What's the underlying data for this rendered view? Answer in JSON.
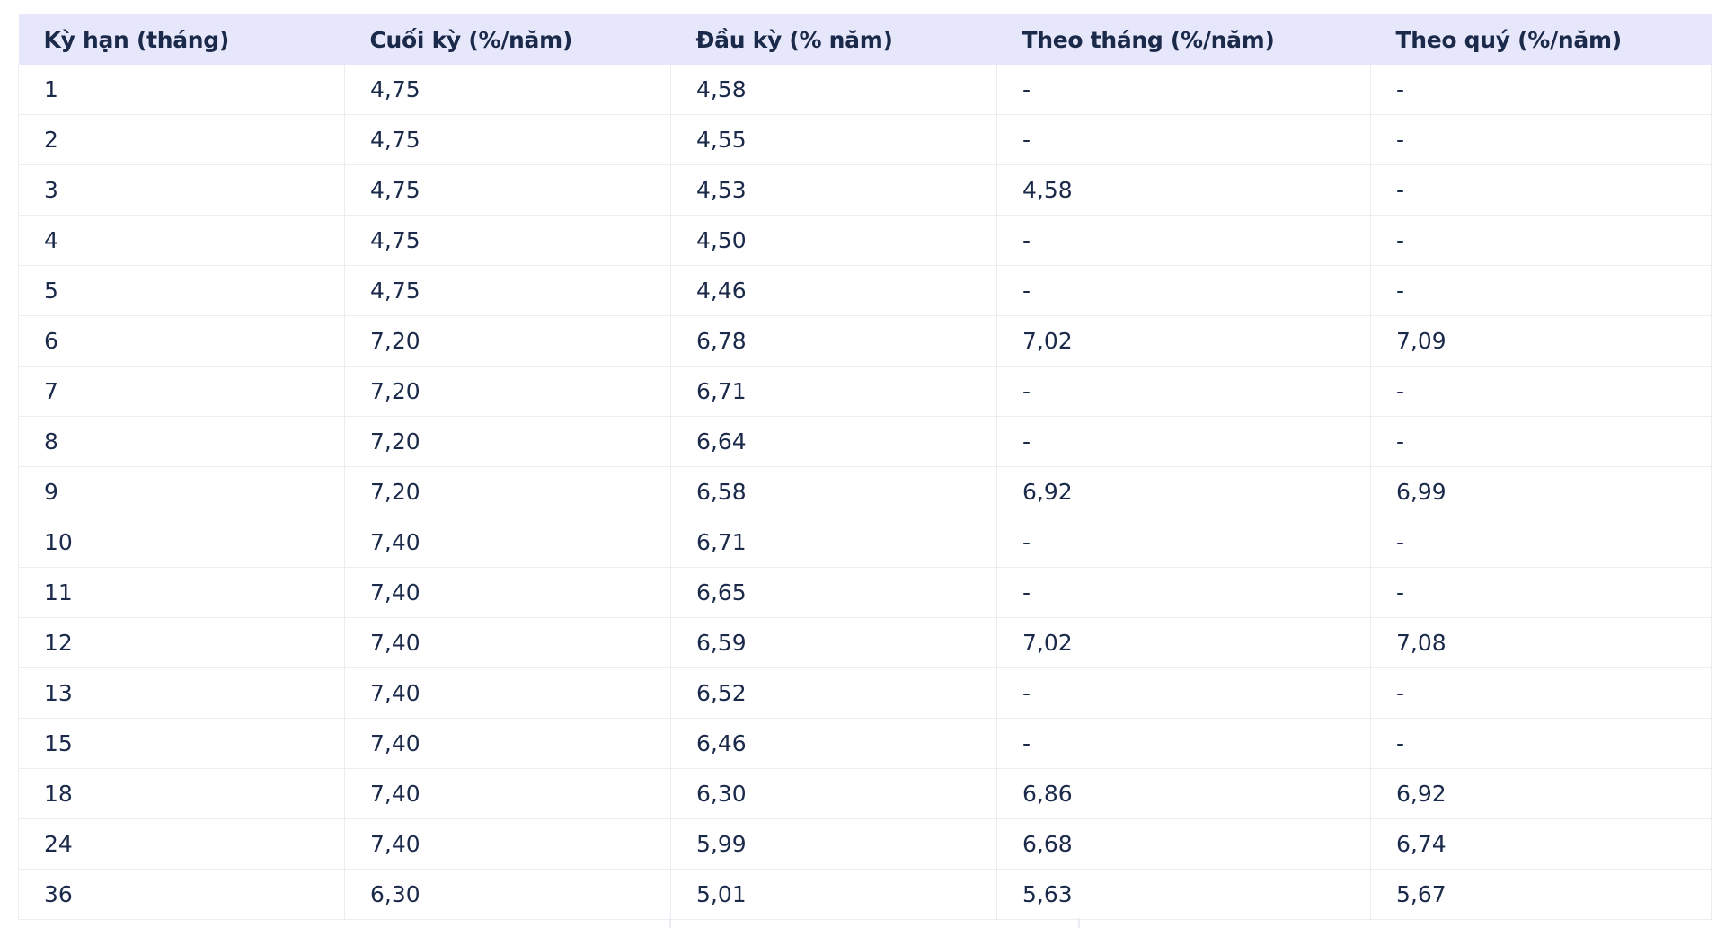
{
  "table": {
    "headers": [
      "Kỳ hạn (tháng)",
      "Cuối kỳ (%/năm)",
      "Đầu kỳ (% năm)",
      "Theo tháng (%/năm)",
      "Theo quý (%/năm)"
    ],
    "rows": [
      [
        "1",
        "4,75",
        "4,58",
        "-",
        "-"
      ],
      [
        "2",
        "4,75",
        "4,55",
        "-",
        "-"
      ],
      [
        "3",
        "4,75",
        "4,53",
        "4,58",
        "-"
      ],
      [
        "4",
        "4,75",
        "4,50",
        "-",
        "-"
      ],
      [
        "5",
        "4,75",
        "4,46",
        "-",
        "-"
      ],
      [
        "6",
        "7,20",
        "6,78",
        "7,02",
        "7,09"
      ],
      [
        "7",
        "7,20",
        "6,71",
        "-",
        "-"
      ],
      [
        "8",
        "7,20",
        "6,64",
        "-",
        "-"
      ],
      [
        "9",
        "7,20",
        "6,58",
        "6,92",
        "6,99"
      ],
      [
        "10",
        "7,40",
        "6,71",
        "-",
        "-"
      ],
      [
        "11",
        "7,40",
        "6,65",
        "-",
        "-"
      ],
      [
        "12",
        "7,40",
        "6,59",
        "7,02",
        "7,08"
      ],
      [
        "13",
        "7,40",
        "6,52",
        "-",
        "-"
      ],
      [
        "15",
        "7,40",
        "6,46",
        "-",
        "-"
      ],
      [
        "18",
        "7,40",
        "6,30",
        "6,86",
        "6,92"
      ],
      [
        "24",
        "7,40",
        "5,99",
        "6,68",
        "6,74"
      ],
      [
        "36",
        "6,30",
        "5,01",
        "5,63",
        "5,67"
      ]
    ]
  }
}
